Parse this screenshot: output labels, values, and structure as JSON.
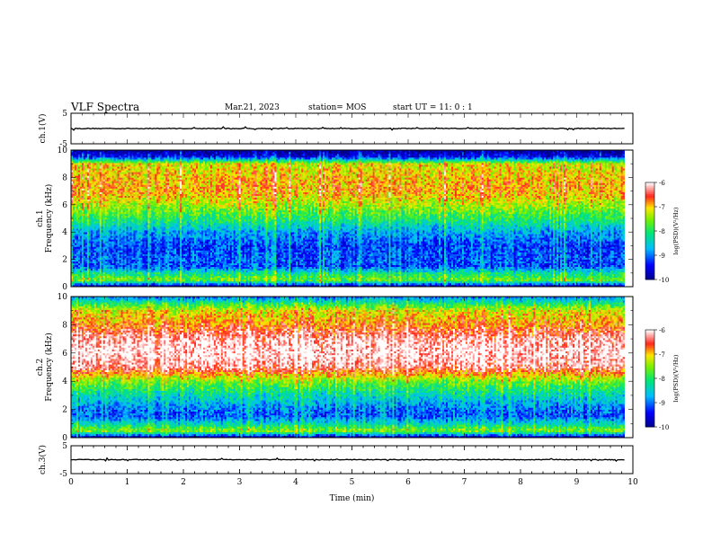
{
  "header": {
    "title": "VLF Spectra",
    "date": "Mar.21, 2023",
    "station": "station= MOS",
    "start": "start  UT =   11: 0  : 1"
  },
  "chart_data": [
    {
      "type": "line",
      "panel": "ch1-waveform",
      "ylabel": "ch.1(V)",
      "ylim": [
        -5,
        5
      ],
      "yticks": [
        "5",
        "-5"
      ],
      "xlim": [
        0,
        10
      ],
      "series": [
        {
          "x": [
            0,
            9.85
          ],
          "y": [
            0,
            0
          ]
        }
      ]
    },
    {
      "type": "heatmap",
      "panel": "ch1-spectrogram",
      "ylabel": "ch.1\nFrequency (kHz)",
      "ylim": [
        0,
        10
      ],
      "yticks": [
        "0",
        "2",
        "4",
        "6",
        "8",
        "10"
      ],
      "xlim": [
        0,
        10
      ],
      "data_end": 9.85,
      "colorbar": {
        "label": "log(PSD)(V²/Hz)",
        "range": [
          -10,
          -6
        ],
        "ticks": [
          "-6",
          "-7",
          "-8",
          "-9",
          "-10"
        ]
      },
      "profile": {
        "freq_khz": [
          0,
          0.5,
          1,
          1.5,
          2,
          3,
          4,
          5,
          6,
          7,
          8,
          9,
          9.5,
          10
        ],
        "log_psd": [
          -10,
          -7.6,
          -8.2,
          -9.2,
          -9.1,
          -9.2,
          -8.8,
          -8.0,
          -7.4,
          -6.9,
          -7.0,
          -7.2,
          -9.4,
          -10
        ]
      }
    },
    {
      "type": "heatmap",
      "panel": "ch2-spectrogram",
      "ylabel": "ch.2\nFrequency (kHz)",
      "ylim": [
        0,
        10
      ],
      "yticks": [
        "0",
        "2",
        "4",
        "6",
        "8",
        "10"
      ],
      "xlim": [
        0,
        10
      ],
      "data_end": 9.85,
      "colorbar": {
        "label": "log(PSD)(V²/Hz)",
        "range": [
          -10,
          -6
        ],
        "ticks": [
          "-6",
          "-7",
          "-8",
          "-9",
          "-10"
        ]
      },
      "profile": {
        "freq_khz": [
          0,
          0.5,
          1,
          1.5,
          2,
          3,
          4,
          5,
          6,
          7,
          8,
          9,
          9.5,
          10
        ],
        "log_psd": [
          -10,
          -7.5,
          -8.4,
          -9.1,
          -9.0,
          -8.4,
          -7.6,
          -6.3,
          -6.0,
          -6.2,
          -6.8,
          -7.2,
          -8.0,
          -9.0
        ]
      }
    },
    {
      "type": "line",
      "panel": "ch3-waveform",
      "ylabel": "ch.3(V)",
      "ylim": [
        -5,
        5
      ],
      "yticks": [
        "5",
        "-5"
      ],
      "xlim": [
        0,
        10
      ],
      "series": [
        {
          "x": [
            0,
            9.85
          ],
          "y": [
            0,
            0
          ]
        }
      ]
    }
  ],
  "x_axis": {
    "label": "Time  (min)",
    "ticks": [
      "0",
      "1",
      "2",
      "3",
      "4",
      "5",
      "6",
      "7",
      "8",
      "9",
      "10"
    ]
  }
}
